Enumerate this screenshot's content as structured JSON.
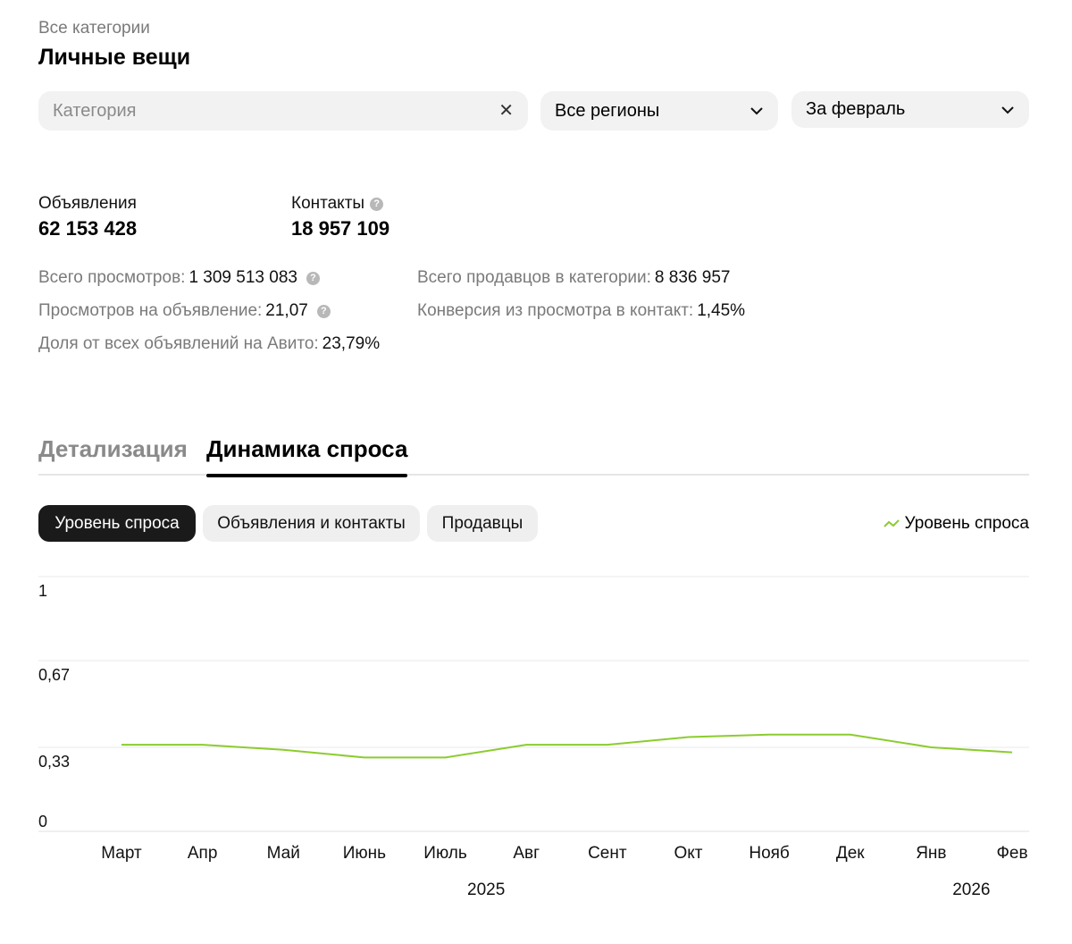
{
  "header": {
    "breadcrumb": "Все категории",
    "title": "Личные вещи"
  },
  "filters": {
    "category_placeholder": "Категория",
    "region": "Все регионы",
    "period": "За февраль"
  },
  "metrics": {
    "ads_label": "Объявления",
    "ads_value": "62 153 428",
    "contacts_label": "Контакты",
    "contacts_value": "18 957 109"
  },
  "stats": {
    "views_label": "Всего просмотров:",
    "views_value": "1 309 513 083",
    "views_per_ad_label": "Просмотров на объявление:",
    "views_per_ad_value": "21,07",
    "share_label": "Доля от всех объявлений на Авито:",
    "share_value": "23,79%",
    "sellers_label": "Всего продавцов в категории:",
    "sellers_value": "8 836 957",
    "conversion_label": "Конверсия из просмотра в контакт:",
    "conversion_value": "1,45%"
  },
  "tabs": {
    "details": "Детализация",
    "dynamics": "Динамика спроса"
  },
  "subtabs": {
    "demand": "Уровень спроса",
    "ads_contacts": "Объявления и контакты",
    "sellers": "Продавцы"
  },
  "legend": {
    "label": "Уровень спроса",
    "color": "#8ccc2f"
  },
  "chart_data": {
    "type": "line",
    "title": "",
    "xlabel": "",
    "ylabel": "",
    "ylim": [
      0,
      1
    ],
    "yticks": [
      "1",
      "0,67",
      "0,33",
      "0"
    ],
    "ytick_values": [
      1,
      0.67,
      0.33,
      0
    ],
    "categories": [
      "Март",
      "Апр",
      "Май",
      "Июнь",
      "Июль",
      "Авг",
      "Сент",
      "Окт",
      "Нояб",
      "Дек",
      "Янв",
      "Фев"
    ],
    "year_labels": [
      {
        "label": "2025",
        "at": "Авг"
      },
      {
        "label": "2026",
        "at": "Янв"
      }
    ],
    "series": [
      {
        "name": "Уровень спроса",
        "color": "#8ccc2f",
        "values": [
          0.34,
          0.34,
          0.32,
          0.29,
          0.29,
          0.34,
          0.34,
          0.37,
          0.38,
          0.38,
          0.33,
          0.31
        ]
      }
    ]
  }
}
